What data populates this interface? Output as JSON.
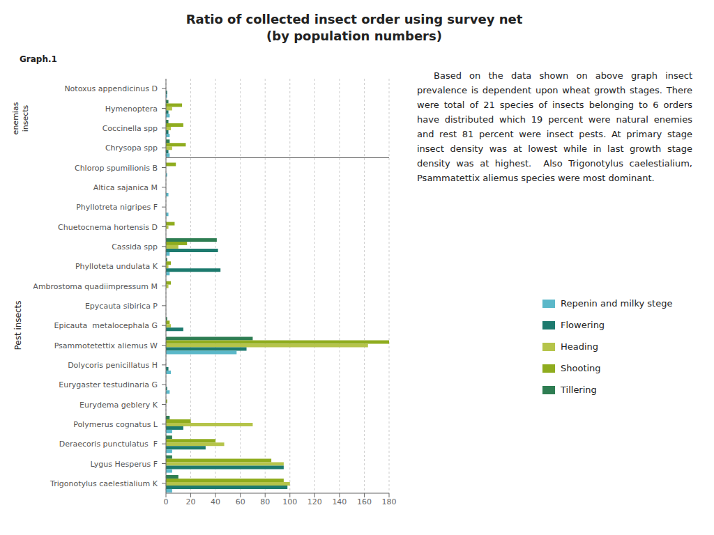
{
  "chart_data": {
    "type": "bar",
    "orientation": "horizontal",
    "title": "Ratio of collected insect order using survey net",
    "subtitle": "(by population numbers)",
    "annotations": [
      "Graph.1",
      "enemias",
      "insects",
      "Pest insects",
      "Based on the data shown on above graph insect prevalence is dependent upon wheat growth stages. There were total of 21 species of insects belonging to 6 orders have distributed which 19 percent were natural enemies and rest 81 percent were insect pests. At primary stage insect density was at lowest while in last growth stage density was at highest.  Also Trigonotylus caelestialium, Psammatettix aliemus species were most dominant."
    ],
    "categories": [
      "Notoxus appendicinus D",
      "Hymenoptera",
      "Coccinella spp",
      "Chrysopa spp",
      "Chlorop spumilionis B",
      "Altica sajanica M",
      "Phyllotreta nigripes F",
      "Chuetocnema hortensis D",
      "Cassida spp",
      "Phylloteta undulata K",
      "Ambrostoma quadiimpressum M",
      "Epycauta sibirica P",
      "Epicauta  metalocephala G",
      "Psammotetettix aliemus W",
      "Dolycoris penicillatus H",
      "Eurygaster testudinaria G",
      "Eurydema geblery K",
      "Polymerus cognatus L",
      "Deraecoris punctulatus  F",
      "Lygus Hesperus F",
      "Trigonotylus caelestialium K"
    ],
    "series": [
      {
        "name": "Repenin and milky stege",
        "color": "#5bb8c9",
        "values": [
          1,
          3,
          3,
          3,
          1,
          2,
          2,
          0,
          3,
          3,
          0,
          0,
          0,
          57,
          4,
          3,
          0,
          5,
          5,
          5,
          5
        ]
      },
      {
        "name": "Flowering",
        "color": "#1d7a6e",
        "values": [
          1,
          2,
          2,
          2,
          0,
          0,
          0,
          0,
          42,
          44,
          0,
          0,
          14,
          65,
          2,
          1,
          0,
          14,
          32,
          95,
          98
        ]
      },
      {
        "name": "Heading",
        "color": "#b5c44a",
        "values": [
          0,
          5,
          4,
          5,
          0,
          0,
          0,
          2,
          10,
          2,
          2,
          0,
          4,
          163,
          0,
          0,
          0,
          70,
          47,
          95,
          100
        ]
      },
      {
        "name": "Shooting",
        "color": "#8fac1e",
        "values": [
          0,
          13,
          14,
          16,
          8,
          0,
          0,
          7,
          17,
          4,
          4,
          0,
          3,
          180,
          0,
          0,
          1,
          20,
          40,
          85,
          95
        ]
      },
      {
        "name": "Tillering",
        "color": "#2e7d52",
        "values": [
          0,
          2,
          2,
          3,
          0,
          0,
          0,
          0,
          41,
          1,
          0,
          0,
          1,
          70,
          0,
          0,
          0,
          3,
          5,
          5,
          10
        ]
      }
    ],
    "xlim": [
      0,
      180
    ],
    "xticks": [
      0,
      20,
      40,
      60,
      80,
      100,
      120,
      140,
      160,
      180
    ],
    "grid": true,
    "legend": "right"
  }
}
